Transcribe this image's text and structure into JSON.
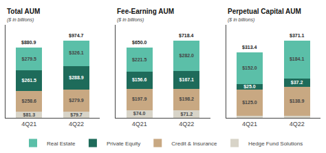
{
  "chart_data": [
    {
      "type": "bar",
      "stacked": true,
      "title": "Total AUM",
      "subtitle": "($ in billions)",
      "categories": [
        "4Q21",
        "4Q22"
      ],
      "series": [
        {
          "name": "Hedge Fund Solutions",
          "color": "#d8d4c8",
          "values": [
            81.3,
            79.7
          ],
          "value_labels": [
            "$81.3",
            "$79.7"
          ]
        },
        {
          "name": "Credit & Insurance",
          "color": "#c8a882",
          "values": [
            258.6,
            279.9
          ],
          "value_labels": [
            "$258.6",
            "$279.9"
          ]
        },
        {
          "name": "Private Equity",
          "color": "#1e6b5a",
          "values": [
            261.5,
            288.9
          ],
          "value_labels": [
            "$261.5",
            "$288.9"
          ]
        },
        {
          "name": "Real Estate",
          "color": "#5bbfa8",
          "values": [
            279.5,
            326.1
          ],
          "value_labels": [
            "$279.5",
            "$326.1"
          ]
        }
      ],
      "totals": [
        880.9,
        974.7
      ],
      "total_labels": [
        "$880.9",
        "$974.7"
      ],
      "ylim": [
        0,
        1169.64
      ],
      "data_labels": true,
      "tick_labels": "x",
      "grid": false,
      "legend": "bottom"
    },
    {
      "type": "bar",
      "stacked": true,
      "title": "Fee-Earning AUM",
      "subtitle": "($ in billions)",
      "categories": [
        "4Q21",
        "4Q22"
      ],
      "series": [
        {
          "name": "Hedge Fund Solutions",
          "color": "#d8d4c8",
          "values": [
            74.0,
            71.2
          ],
          "value_labels": [
            "$74.0",
            "$71.2"
          ]
        },
        {
          "name": "Credit & Insurance",
          "color": "#c8a882",
          "values": [
            197.9,
            198.2
          ],
          "value_labels": [
            "$197.9",
            "$198.2"
          ]
        },
        {
          "name": "Private Equity",
          "color": "#1e6b5a",
          "values": [
            156.6,
            167.1
          ],
          "value_labels": [
            "$156.6",
            "$167.1"
          ]
        },
        {
          "name": "Real Estate",
          "color": "#5bbfa8",
          "values": [
            221.5,
            282.0
          ],
          "value_labels": [
            "$221.5",
            "$282.0"
          ]
        }
      ],
      "totals": [
        650.0,
        718.4
      ],
      "total_labels": [
        "$650.0",
        "$718.4"
      ],
      "ylim": [
        0,
        862.08
      ],
      "data_labels": true,
      "tick_labels": "x",
      "grid": false,
      "legend": "bottom"
    },
    {
      "type": "bar",
      "stacked": true,
      "title": "Perpetual Capital AUM",
      "subtitle": "($ in billions)",
      "categories": [
        "4Q21",
        "4Q22"
      ],
      "series": [
        {
          "name": "Hedge Fund Solutions",
          "color": "#d8d4c8",
          "values": [
            11.3,
            10.9
          ],
          "value_labels": [
            null,
            null
          ]
        },
        {
          "name": "Credit & Insurance",
          "color": "#c8a882",
          "values": [
            125.0,
            138.9
          ],
          "value_labels": [
            "$125.0",
            "$138.9"
          ]
        },
        {
          "name": "Private Equity",
          "color": "#1e6b5a",
          "values": [
            25.0,
            37.2
          ],
          "value_labels": [
            "$25.0",
            "$37.2"
          ]
        },
        {
          "name": "Real Estate",
          "color": "#5bbfa8",
          "values": [
            152.0,
            184.1
          ],
          "value_labels": [
            "$152.0",
            "$184.1"
          ]
        }
      ],
      "totals": [
        313.4,
        371.1
      ],
      "total_labels": [
        "$313.4",
        "$371.1"
      ],
      "ylim": [
        0,
        445.32
      ],
      "data_labels": true,
      "tick_labels": "x",
      "grid": false,
      "legend": "bottom"
    }
  ]
}
